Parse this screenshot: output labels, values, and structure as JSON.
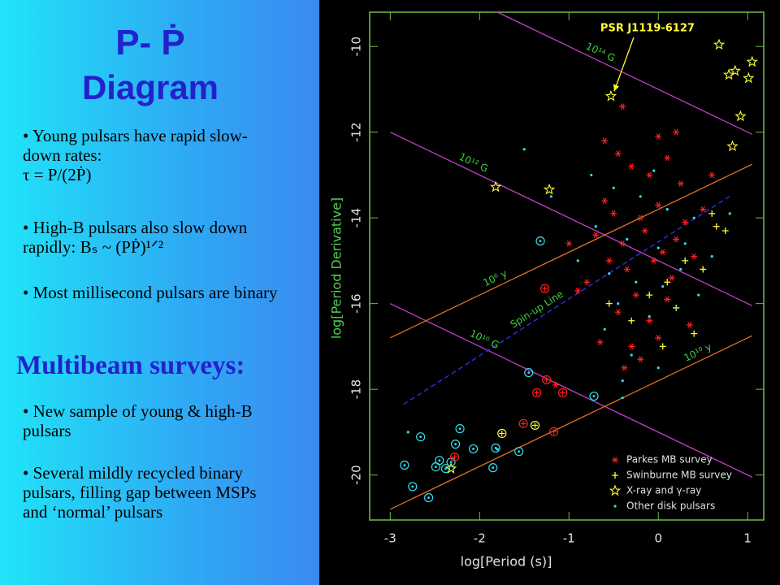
{
  "slide": {
    "title": "P- Ṗ",
    "title2": "Diagram",
    "bullets": [
      "Young pulsars have rapid slow-down rates:",
      "τ = P/(2Ṗ)",
      "High-B pulsars also slow down rapidly:  Bₛ ~ (PṖ)¹ᐟ²",
      "Most millisecond pulsars are binary"
    ],
    "heading": "Multibeam surveys:",
    "bullets2": [
      "New sample of young & high-B pulsars",
      "Several mildly recycled binary pulsars, filling gap between MSPs and ‘normal’ pulsars"
    ]
  },
  "chart_data": {
    "type": "scatter",
    "xlabel": "log[Period (s)]",
    "ylabel": "log[Period Derivative]",
    "xlim": [
      -3.23,
      1.18
    ],
    "ylim": [
      -21.05,
      -9.2
    ],
    "xticks": [
      -3,
      -2,
      -1,
      0,
      1
    ],
    "yticks": [
      -10,
      -12,
      -14,
      -16,
      -18,
      -20
    ],
    "annotation": {
      "text": "PSR J1119-6127",
      "x": -0.53,
      "y": -11.16
    },
    "lines": [
      {
        "label": "10¹⁴ G",
        "color": "#c040c8",
        "x": [
          -1.8,
          1.05
        ],
        "y": [
          -9.2,
          -12.05
        ]
      },
      {
        "label": "10¹² G",
        "color": "#c040c8",
        "x": [
          -3,
          1.05
        ],
        "y": [
          -12,
          -16.05
        ]
      },
      {
        "label": "10¹⁰ G",
        "color": "#c040c8",
        "x": [
          -3,
          1.05
        ],
        "y": [
          -16,
          -20.05
        ]
      },
      {
        "label": "10⁶ y",
        "color": "#e07020",
        "x": [
          -3,
          1.05
        ],
        "y": [
          -16.8,
          -12.75
        ]
      },
      {
        "label": "10¹⁰ y",
        "color": "#e07020",
        "x": [
          -3,
          1.05
        ],
        "y": [
          -20.8,
          -16.75
        ]
      },
      {
        "label": "Spin-up Line",
        "color": "#3030ff",
        "dashed": true,
        "x": [
          -2.85,
          0.82
        ],
        "y": [
          -18.35,
          -13.47
        ]
      }
    ],
    "series": [
      {
        "name": "Parkes MB survey",
        "color": "#ff2020",
        "marker": "asterisk",
        "x": [
          -0.45,
          -0.3,
          -0.1,
          0.1,
          0.25,
          -0.6,
          -0.5,
          -0.2,
          0.0,
          0.3,
          -0.7,
          -0.4,
          -0.15,
          0.05,
          0.2,
          -0.55,
          -0.35,
          -0.05,
          0.15,
          0.4,
          -0.8,
          -0.25,
          0.1,
          -0.45,
          -0.1,
          0.0,
          -0.3,
          0.35,
          -0.65,
          -0.2,
          0.5,
          0.6,
          -1.0,
          -0.9,
          -0.4,
          -0.6,
          0.0,
          -1.15,
          -0.38,
          0.2
        ],
        "y": [
          -12.5,
          -12.8,
          -13.0,
          -12.6,
          -13.2,
          -13.6,
          -13.9,
          -14.0,
          -13.7,
          -14.1,
          -14.4,
          -14.6,
          -14.3,
          -14.8,
          -14.5,
          -15.0,
          -15.2,
          -15.0,
          -15.4,
          -14.9,
          -15.5,
          -15.8,
          -15.9,
          -16.2,
          -16.4,
          -16.8,
          -17.0,
          -16.5,
          -16.9,
          -17.3,
          -13.8,
          -13.0,
          -14.6,
          -15.7,
          -11.4,
          -12.2,
          -12.1,
          -17.9,
          -17.5,
          -12.0
        ]
      },
      {
        "name": "Swinburne MB survey",
        "color": "#ffff30",
        "marker": "plus",
        "x": [
          0.6,
          0.65,
          0.75,
          0.3,
          0.1,
          -0.1,
          0.2,
          -0.3,
          0.5,
          0.4,
          -0.55,
          0.05
        ],
        "y": [
          -13.9,
          -14.2,
          -14.3,
          -15.0,
          -15.5,
          -15.8,
          -16.1,
          -16.4,
          -15.2,
          -16.7,
          -16.0,
          -17.0
        ]
      },
      {
        "name": "X-ray and γ-ray",
        "color": "#ffff30",
        "marker": "star",
        "x": [
          -0.53,
          0.68,
          1.05,
          0.79,
          0.86,
          1.01,
          0.92,
          0.83,
          -1.82,
          -1.22,
          -2.32
        ],
        "y": [
          -11.16,
          -9.96,
          -10.36,
          -10.66,
          -10.57,
          -10.74,
          -11.63,
          -12.33,
          -13.28,
          -13.34,
          -19.85
        ]
      },
      {
        "name": "Other disk pulsars",
        "color": "#30e0f0",
        "marker": "dot",
        "x": [
          -0.5,
          -0.2,
          0.1,
          0.4,
          -0.7,
          -0.35,
          0.0,
          0.3,
          0.6,
          -0.9,
          -0.55,
          -0.25,
          0.05,
          0.25,
          -0.45,
          -0.1,
          0.2,
          -0.6,
          -0.3,
          0.0,
          -1.2,
          -1.5,
          0.8,
          -0.75,
          -0.4,
          -1.8,
          -2.8,
          -0.4,
          0.45,
          -0.05
        ],
        "y": [
          -13.3,
          -13.5,
          -13.8,
          -14.0,
          -14.2,
          -14.5,
          -14.7,
          -14.6,
          -14.9,
          -15.0,
          -15.3,
          -15.5,
          -15.6,
          -15.2,
          -16.0,
          -16.3,
          -16.1,
          -16.6,
          -17.2,
          -17.5,
          -13.5,
          -12.4,
          -13.9,
          -13.0,
          -17.8,
          -19.4,
          -19.0,
          -18.2,
          -15.8,
          -12.9
        ]
      },
      {
        "color": "#30e0f0",
        "marker": "circle-dot",
        "x": [
          -2.84,
          -2.66,
          -2.49,
          -2.45,
          -2.57,
          -2.22,
          -2.27,
          -2.07,
          -1.82,
          -1.85,
          -1.56,
          -1.45,
          -0.72,
          -1.32,
          -2.32,
          -2.38,
          -2.75
        ],
        "y": [
          -19.77,
          -19.11,
          -19.81,
          -19.66,
          -20.53,
          -18.92,
          -19.28,
          -19.39,
          -19.37,
          -19.83,
          -19.45,
          -17.61,
          -18.16,
          -14.54,
          -19.7,
          -19.85,
          -20.27
        ]
      },
      {
        "color": "#ff2020",
        "marker": "circle-plus",
        "x": [
          -1.27,
          -1.25,
          -1.36,
          -1.07,
          -1.17,
          -1.51,
          -2.28
        ],
        "y": [
          -15.65,
          -17.78,
          -18.08,
          -18.08,
          -18.99,
          -18.8,
          -19.58
        ]
      },
      {
        "color": "#ffff30",
        "marker": "circle-plus",
        "x": [
          -1.75,
          -1.38
        ],
        "y": [
          -19.03,
          -18.84
        ]
      }
    ]
  }
}
